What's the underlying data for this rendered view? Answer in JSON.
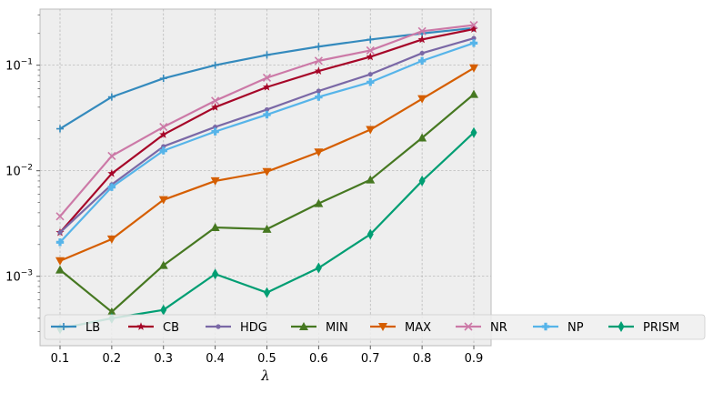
{
  "chart_data": {
    "type": "line",
    "xlabel": "λ",
    "ylabel": "",
    "title": "",
    "yscale": "log",
    "grid": true,
    "legend_position": "bottom, single row",
    "x": [
      0.1,
      0.2,
      0.3,
      0.4,
      0.5,
      0.6,
      0.7,
      0.8,
      0.9
    ],
    "x_tick_labels": [
      "0.1",
      "0.2",
      "0.3",
      "0.4",
      "0.5",
      "0.6",
      "0.7",
      "0.8",
      "0.9"
    ],
    "ylim": [
      0.00022,
      0.34
    ],
    "y_ticks": [
      {
        "value": 0.001,
        "base": "10",
        "exp": "−3"
      },
      {
        "value": 0.01,
        "base": "10",
        "exp": "−2"
      },
      {
        "value": 0.1,
        "base": "10",
        "exp": "−1"
      }
    ],
    "series": [
      {
        "name": "LB",
        "color": "#348abd",
        "marker": "plus",
        "values": [
          0.025,
          0.05,
          0.075,
          0.1,
          0.125,
          0.15,
          0.175,
          0.2,
          0.225
        ]
      },
      {
        "name": "CB",
        "color": "#a60628",
        "marker": "star",
        "values": [
          0.0026,
          0.0094,
          0.022,
          0.04,
          0.062,
          0.088,
          0.12,
          0.175,
          0.22
        ]
      },
      {
        "name": "HDG",
        "color": "#7a68a6",
        "marker": "dot",
        "values": [
          0.0026,
          0.0074,
          0.017,
          0.026,
          0.038,
          0.057,
          0.082,
          0.13,
          0.18
        ]
      },
      {
        "name": "MIN",
        "color": "#467821",
        "marker": "triangle-up",
        "values": [
          0.00115,
          0.00046,
          0.00127,
          0.0029,
          0.0028,
          0.0049,
          0.0082,
          0.0205,
          0.053
        ]
      },
      {
        "name": "MAX",
        "color": "#d55e00",
        "marker": "triangle-down",
        "values": [
          0.0014,
          0.00225,
          0.0053,
          0.008,
          0.0098,
          0.015,
          0.0245,
          0.048,
          0.094
        ]
      },
      {
        "name": "NR",
        "color": "#cc79a7",
        "marker": "x",
        "values": [
          0.0037,
          0.0138,
          0.026,
          0.046,
          0.076,
          0.11,
          0.138,
          0.21,
          0.24
        ]
      },
      {
        "name": "NP",
        "color": "#56b4e9",
        "marker": "plus-filled",
        "values": [
          0.0021,
          0.007,
          0.0155,
          0.0235,
          0.034,
          0.05,
          0.069,
          0.11,
          0.162
        ]
      },
      {
        "name": "PRISM",
        "color": "#009e73",
        "marker": "thin-diamond",
        "values": [
          0.00032,
          0.0004,
          0.00048,
          0.00105,
          0.0007,
          0.0012,
          0.0025,
          0.008,
          0.023
        ]
      }
    ]
  }
}
